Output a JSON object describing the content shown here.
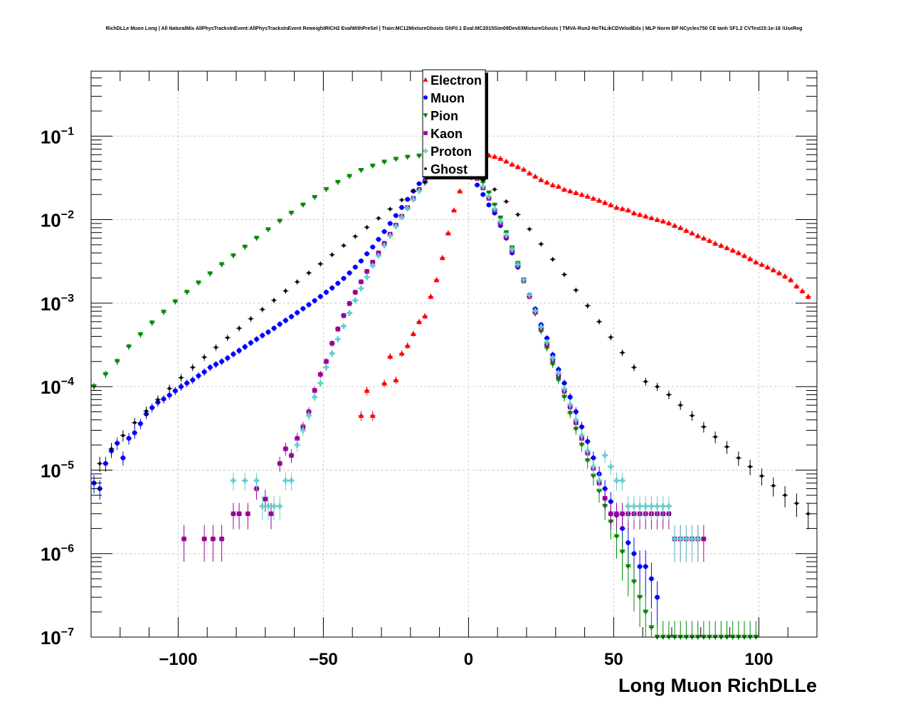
{
  "chart_data": {
    "type": "scatter",
    "title": "RichDLLe Muon Long | All NaturalMix AllPhysTracksInEvent:AllPhysTracksInEvent ReweightRICH2 EvalWithPreSel | Train:MC12MixtureGhosts GhF0.1 Eval:MC2015Sim09Dev03MixtureGhosts | TMVA-Run2-NoTkLikCDVelodEdx | MLP Norm BP NCycles750 CE tanh SF1.2 CVTest15:1e-16 !UseReg",
    "xlabel": "Long Muon RichDLLe",
    "ylabel": "",
    "xlim": [
      -130,
      120
    ],
    "ylim": [
      1e-07,
      0.6
    ],
    "yscale": "log",
    "grid": true,
    "legend_position": "top-center",
    "x_ticks": [
      {
        "value": -100,
        "label": "−100"
      },
      {
        "value": -50,
        "label": "−50"
      },
      {
        "value": 0,
        "label": "0"
      },
      {
        "value": 50,
        "label": "50"
      },
      {
        "value": 100,
        "label": "100"
      }
    ],
    "y_ticks": [
      {
        "value": 1e-07,
        "base": "10",
        "exp": "−7"
      },
      {
        "value": 1e-06,
        "base": "10",
        "exp": "−6"
      },
      {
        "value": 1e-05,
        "base": "10",
        "exp": "−5"
      },
      {
        "value": 0.0001,
        "base": "10",
        "exp": "−4"
      },
      {
        "value": 0.001,
        "base": "10",
        "exp": "−3"
      },
      {
        "value": 0.01,
        "base": "10",
        "exp": "−2"
      },
      {
        "value": 0.1,
        "base": "10",
        "exp": "−1"
      }
    ],
    "series": [
      {
        "name": "Electron",
        "color": "#ff0000",
        "marker": "triangle-up",
        "x": [
          -37,
          -35,
          -33,
          -29,
          -27,
          -25,
          -23,
          -21,
          -19,
          -17,
          -15,
          -13,
          -11,
          -9,
          -7,
          -5,
          -3,
          -1,
          1,
          3,
          5,
          7,
          9,
          11,
          13,
          15,
          17,
          19,
          21,
          23,
          25,
          27,
          29,
          31,
          33,
          35,
          37,
          39,
          41,
          43,
          45,
          47,
          49,
          51,
          53,
          55,
          57,
          59,
          61,
          63,
          65,
          67,
          69,
          71,
          73,
          75,
          77,
          79,
          81,
          83,
          85,
          87,
          89,
          91,
          93,
          95,
          97,
          99,
          101,
          103,
          105,
          107,
          109,
          111,
          113,
          115,
          117
        ],
        "y": [
          4.5e-05,
          9e-05,
          4.5e-05,
          0.00011,
          0.00023,
          0.00012,
          0.00025,
          0.00031,
          0.00043,
          0.0006,
          0.0007,
          0.0012,
          0.0019,
          0.0035,
          0.0069,
          0.013,
          0.022,
          0.033,
          0.046,
          0.057,
          0.06,
          0.059,
          0.057,
          0.054,
          0.05,
          0.046,
          0.043,
          0.04,
          0.036,
          0.033,
          0.03,
          0.028,
          0.026,
          0.025,
          0.023,
          0.022,
          0.021,
          0.02,
          0.019,
          0.018,
          0.017,
          0.016,
          0.015,
          0.014,
          0.0135,
          0.013,
          0.012,
          0.0115,
          0.011,
          0.0105,
          0.01,
          0.0096,
          0.0091,
          0.0085,
          0.008,
          0.0074,
          0.0069,
          0.0064,
          0.006,
          0.0056,
          0.0052,
          0.0049,
          0.0046,
          0.0043,
          0.004,
          0.0037,
          0.0034,
          0.0031,
          0.0029,
          0.0027,
          0.0025,
          0.0023,
          0.0021,
          0.0019,
          0.0016,
          0.0014,
          0.0012
        ]
      },
      {
        "name": "Muon",
        "color": "#0000ff",
        "marker": "circle",
        "x": [
          -129,
          -127,
          -125,
          -123,
          -121,
          -119,
          -117,
          -115,
          -113,
          -111,
          -109,
          -107,
          -105,
          -103,
          -101,
          -99,
          -97,
          -95,
          -93,
          -91,
          -89,
          -87,
          -85,
          -83,
          -81,
          -79,
          -77,
          -75,
          -73,
          -71,
          -69,
          -67,
          -65,
          -63,
          -61,
          -59,
          -57,
          -55,
          -53,
          -51,
          -49,
          -47,
          -45,
          -43,
          -41,
          -39,
          -37,
          -35,
          -33,
          -31,
          -29,
          -27,
          -25,
          -23,
          -21,
          -19,
          -17,
          -15,
          -13,
          -11,
          -9,
          -7,
          -5,
          -3,
          -1,
          1,
          3,
          5,
          7,
          9,
          11,
          13,
          15,
          17,
          19,
          21,
          23,
          25,
          27,
          29,
          31,
          33,
          35,
          37,
          39,
          41,
          43,
          45,
          47,
          49,
          51,
          53,
          55,
          57,
          59,
          61,
          63,
          65
        ],
        "y": [
          7e-06,
          6e-06,
          1.2e-05,
          1.7e-05,
          2.1e-05,
          1.4e-05,
          2.4e-05,
          2.8e-05,
          3.6e-05,
          4.7e-05,
          5.6e-05,
          6.5e-05,
          7.1e-05,
          7.9e-05,
          8.9e-05,
          0.0001,
          0.00011,
          0.00012,
          0.000135,
          0.00015,
          0.00017,
          0.000185,
          0.0002,
          0.00022,
          0.000245,
          0.00027,
          0.0003,
          0.000335,
          0.00037,
          0.00041,
          0.00045,
          0.0005,
          0.00056,
          0.00062,
          0.00069,
          0.00077,
          0.00086,
          0.00096,
          0.00107,
          0.0012,
          0.00135,
          0.00152,
          0.00173,
          0.00198,
          0.0023,
          0.0027,
          0.0032,
          0.0039,
          0.0047,
          0.0058,
          0.0072,
          0.009,
          0.0112,
          0.014,
          0.0175,
          0.022,
          0.027,
          0.033,
          0.039,
          0.044,
          0.048,
          0.05,
          0.049,
          0.045,
          0.039,
          0.032,
          0.026,
          0.02,
          0.015,
          0.012,
          0.0085,
          0.006,
          0.004,
          0.0027,
          0.0019,
          0.00125,
          0.00085,
          0.00055,
          0.00038,
          0.00024,
          0.00016,
          0.00011,
          7.5e-05,
          5e-05,
          3.3e-05,
          2.2e-05,
          1.4e-05,
          9e-06,
          6e-06,
          4.2e-06,
          2.9e-06,
          2e-06,
          1.35e-06,
          1e-06,
          7e-07,
          7e-07,
          5e-07,
          3e-07
        ]
      },
      {
        "name": "Pion",
        "color": "#008800",
        "marker": "triangle-down",
        "x": [
          -129,
          -125,
          -121,
          -117,
          -113,
          -109,
          -105,
          -101,
          -97,
          -93,
          -89,
          -85,
          -81,
          -77,
          -73,
          -69,
          -65,
          -61,
          -57,
          -53,
          -49,
          -45,
          -41,
          -37,
          -33,
          -29,
          -25,
          -21,
          -17,
          -13,
          -9,
          -5,
          -1,
          1,
          3,
          5,
          7,
          9,
          11,
          13,
          15,
          17,
          19,
          21,
          23,
          25,
          27,
          29,
          31,
          33,
          35,
          37,
          39,
          41,
          43,
          45,
          47,
          49,
          51,
          53,
          55,
          57,
          59,
          61,
          63,
          65,
          67,
          69,
          71,
          73,
          75,
          77,
          79,
          81,
          83,
          85,
          87,
          89,
          91,
          93,
          95,
          97,
          99
        ],
        "y": [
          0.0001,
          0.00014,
          0.0002,
          0.0003,
          0.00042,
          0.00058,
          0.00078,
          0.00104,
          0.00135,
          0.00175,
          0.00225,
          0.0029,
          0.0037,
          0.0047,
          0.006,
          0.0076,
          0.0096,
          0.012,
          0.015,
          0.0185,
          0.023,
          0.028,
          0.033,
          0.039,
          0.044,
          0.049,
          0.053,
          0.056,
          0.058,
          0.058,
          0.056,
          0.052,
          0.046,
          0.043,
          0.036,
          0.028,
          0.021,
          0.015,
          0.0105,
          0.007,
          0.0046,
          0.003,
          0.0019,
          0.0012,
          0.00075,
          0.00046,
          0.00029,
          0.000185,
          0.00012,
          7.5e-05,
          4.8e-05,
          3.1e-05,
          2e-05,
          1.3e-05,
          8.5e-06,
          5.6e-06,
          3.7e-06,
          2.4e-06,
          1.6e-06,
          1.05e-06,
          7e-07,
          4.6e-07,
          3e-07,
          2e-07,
          1.3e-07,
          1e-07,
          1e-07,
          1e-07,
          1e-07,
          1e-07,
          1e-07,
          1e-07,
          1e-07,
          1e-07,
          1e-07,
          1e-07,
          1e-07,
          1e-07,
          1e-07,
          1e-07,
          1e-07,
          1e-07,
          1e-07
        ]
      },
      {
        "name": "Kaon",
        "color": "#990099",
        "marker": "square",
        "x": [
          -98,
          -91,
          -88,
          -85,
          -81,
          -79,
          -76,
          -73,
          -70,
          -68,
          -65,
          -63,
          -61,
          -59,
          -57,
          -55,
          -53,
          -51,
          -49,
          -47,
          -45,
          -43,
          -41,
          -39,
          -37,
          -35,
          -33,
          -31,
          -29,
          -27,
          -25,
          -23,
          -21,
          -19,
          -17,
          -15,
          -13,
          -11,
          -9,
          -7,
          -5,
          -3,
          -1,
          1,
          3,
          5,
          7,
          9,
          11,
          13,
          15,
          17,
          19,
          21,
          23,
          25,
          27,
          29,
          31,
          33,
          35,
          37,
          39,
          41,
          43,
          45,
          47,
          49,
          51,
          53,
          55,
          57,
          59,
          61,
          63,
          65,
          67,
          69,
          71,
          73,
          75,
          77,
          79,
          81
        ],
        "y": [
          1.5e-06,
          1.5e-06,
          1.5e-06,
          1.5e-06,
          3e-06,
          3e-06,
          3e-06,
          6e-06,
          4.5e-06,
          3e-06,
          1.2e-05,
          1.8e-05,
          1.5e-05,
          2.4e-05,
          3.3e-05,
          5e-05,
          9e-05,
          0.00014,
          0.0002,
          0.00033,
          0.00049,
          0.00071,
          0.00099,
          0.00135,
          0.0018,
          0.0024,
          0.0031,
          0.004,
          0.0052,
          0.0067,
          0.0086,
          0.011,
          0.014,
          0.018,
          0.023,
          0.029,
          0.035,
          0.041,
          0.046,
          0.049,
          0.05,
          0.048,
          0.044,
          0.038,
          0.031,
          0.024,
          0.018,
          0.013,
          0.009,
          0.0062,
          0.0042,
          0.0028,
          0.00185,
          0.0012,
          0.00078,
          0.0005,
          0.00032,
          0.00021,
          0.000135,
          8.8e-05,
          5.7e-05,
          3.7e-05,
          2.4e-05,
          1.6e-05,
          1.05e-05,
          7e-06,
          4.6e-06,
          3e-06,
          3e-06,
          3e-06,
          3e-06,
          3e-06,
          3e-06,
          3e-06,
          3e-06,
          3e-06,
          3e-06,
          3e-06,
          1.5e-06,
          1.5e-06,
          1.5e-06,
          1.5e-06,
          1.5e-06,
          1.5e-06
        ]
      },
      {
        "name": "Proton",
        "color": "#66cccc",
        "marker": "cross",
        "x": [
          -81,
          -77,
          -73,
          -71,
          -69,
          -67,
          -65,
          -63,
          -61,
          -59,
          -57,
          -55,
          -53,
          -51,
          -49,
          -47,
          -45,
          -43,
          -41,
          -39,
          -37,
          -35,
          -33,
          -31,
          -29,
          -27,
          -25,
          -23,
          -21,
          -19,
          -17,
          -15,
          -13,
          -11,
          -9,
          -7,
          -5,
          -3,
          -1,
          1,
          3,
          5,
          7,
          9,
          11,
          13,
          15,
          17,
          19,
          21,
          23,
          25,
          27,
          29,
          31,
          33,
          35,
          37,
          39,
          41,
          43,
          45,
          47,
          49,
          51,
          53,
          55,
          57,
          59,
          61,
          63,
          65,
          67,
          69,
          71,
          73,
          75,
          77,
          79
        ],
        "y": [
          7.5e-06,
          7.5e-06,
          7.5e-06,
          3.7e-06,
          3.7e-06,
          3.7e-06,
          3.7e-06,
          7.5e-06,
          7.5e-06,
          2e-05,
          3e-05,
          4.5e-05,
          7.5e-05,
          0.00011,
          0.00017,
          0.00025,
          0.00037,
          0.00053,
          0.00076,
          0.00108,
          0.0015,
          0.00205,
          0.0028,
          0.0037,
          0.0049,
          0.0064,
          0.0083,
          0.0107,
          0.0137,
          0.0175,
          0.022,
          0.0275,
          0.0335,
          0.0395,
          0.045,
          0.0485,
          0.05,
          0.0485,
          0.0445,
          0.039,
          0.032,
          0.025,
          0.019,
          0.0135,
          0.0095,
          0.0065,
          0.0044,
          0.0029,
          0.0019,
          0.00125,
          0.00081,
          0.00052,
          0.00034,
          0.00022,
          0.000145,
          9.4e-05,
          6.1e-05,
          4e-05,
          2.6e-05,
          1.7e-05,
          1.1e-05,
          7.5e-06,
          1.5e-05,
          1.1e-05,
          7.5e-06,
          7.5e-06,
          3.7e-06,
          3.7e-06,
          3.7e-06,
          3.7e-06,
          3.7e-06,
          3.7e-06,
          3.7e-06,
          3.7e-06,
          1.5e-06,
          1.5e-06,
          1.5e-06,
          1.5e-06,
          1.5e-06
        ]
      },
      {
        "name": "Ghost",
        "color": "#000000",
        "marker": "star",
        "x": [
          -127,
          -123,
          -119,
          -115,
          -111,
          -107,
          -103,
          -99,
          -95,
          -91,
          -87,
          -83,
          -79,
          -75,
          -71,
          -67,
          -63,
          -59,
          -55,
          -51,
          -47,
          -43,
          -39,
          -35,
          -31,
          -27,
          -23,
          -19,
          -15,
          -11,
          -7,
          -3,
          1,
          5,
          9,
          13,
          17,
          21,
          25,
          29,
          33,
          37,
          41,
          45,
          49,
          53,
          57,
          61,
          65,
          69,
          73,
          77,
          81,
          85,
          89,
          93,
          97,
          101,
          105,
          109,
          113,
          117
        ],
        "y": [
          1.2e-05,
          1.8e-05,
          2.6e-05,
          3.7e-05,
          5.1e-05,
          7e-05,
          9.5e-05,
          0.000128,
          0.00017,
          0.000225,
          0.000295,
          0.000385,
          0.0005,
          0.00065,
          0.00084,
          0.00108,
          0.0014,
          0.0018,
          0.0023,
          0.00295,
          0.0038,
          0.0049,
          0.0063,
          0.0081,
          0.0104,
          0.0134,
          0.0172,
          0.022,
          0.028,
          0.034,
          0.038,
          0.039,
          0.036,
          0.03,
          0.023,
          0.0165,
          0.0115,
          0.0077,
          0.0051,
          0.00335,
          0.0022,
          0.00143,
          0.00093,
          0.0006,
          0.00039,
          0.000255,
          0.00017,
          0.000115,
          0.0001,
          8e-05,
          6e-05,
          4.5e-05,
          3.3e-05,
          2.5e-05,
          1.9e-05,
          1.4e-05,
          1.1e-05,
          8.5e-06,
          6.5e-06,
          5e-06,
          4e-06,
          3e-06
        ]
      }
    ]
  }
}
